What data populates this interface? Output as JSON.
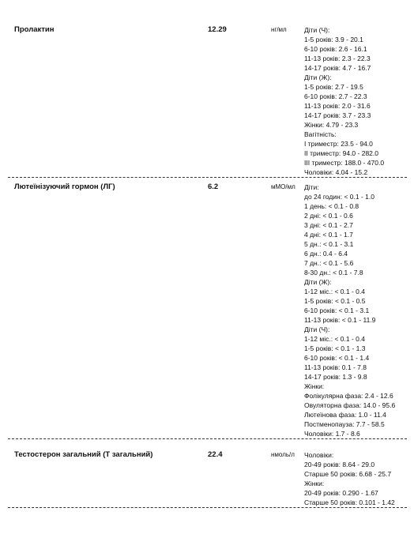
{
  "rows": [
    {
      "name": "Пролактин",
      "value": "12.29",
      "unit": "нг/мл",
      "reference": [
        "Діти (Ч):",
        "1-5 років: 3.9 - 20.1",
        "6-10 років: 2.6 - 16.1",
        "11-13 років: 2.3 - 22.3",
        "14-17 років: 4.7 - 16.7",
        "Діти (Ж):",
        "1-5 років: 2.7 - 19.5",
        "6-10 років: 2.7 - 22.3",
        "11-13 років: 2.0 - 31.6",
        "14-17 років: 3.7 - 23.3",
        "Жінки: 4.79 - 23.3",
        "Вагітність:",
        "I триместр: 23.5 - 94.0",
        "II триместр: 94.0 - 282.0",
        "III триместр: 188.0 - 470.0",
        "Чоловіки: 4.04 - 15.2"
      ]
    },
    {
      "name": "Лютеїнізуючий гормон (ЛГ)",
      "value": "6.2",
      "unit": "мМО/мл",
      "reference": [
        "Діти:",
        "до 24 годин: < 0.1 - 1.0",
        "1 день: < 0.1 - 0.8",
        "2 дні: < 0.1 - 0.6",
        "3 дні: < 0.1 - 2.7",
        "4 дні: < 0.1 - 1.7",
        "5 дн.: < 0.1 - 3.1",
        "6 дн.: 0.4 - 6.4",
        "7 дн.: < 0.1 - 5.6",
        "8-30 дн.: < 0.1 - 7.8",
        "Діти (Ж):",
        "1-12 міс.: < 0.1 - 0.4",
        "1-5 років: < 0.1 - 0.5",
        "6-10 років: < 0.1 - 3.1",
        "11-13 років: < 0.1 - 11.9",
        "Діти (Ч):",
        "1-12 міс.: < 0.1 - 0.4",
        "1-5 років: < 0.1 - 1.3",
        "6-10 років: < 0.1 - 1.4",
        "11-13 років: 0.1 - 7.8",
        "14-17 років: 1.3 - 9.8",
        "Жінки:",
        "Фолікулярна фаза: 2.4 - 12.6",
        "Овуляторна фаза: 14.0 - 95.6",
        "Лютеїнова фаза: 1.0 - 11.4",
        "Постменопауза: 7.7 - 58.5",
        "Чоловіки: 1.7 - 8.6"
      ]
    },
    {
      "name": "Тестостерон загальний (Т загальний)",
      "value": "22.4",
      "unit": "нмоль/л",
      "reference": [
        "Чоловіки:",
        "20-49 років: 8.64 - 29.0",
        "Старше 50 років: 6.68 - 25.7",
        "Жінки:",
        "20-49 років: 0.290 - 1.67",
        "Старше 50 років: 0.101 - 1.42"
      ]
    }
  ]
}
